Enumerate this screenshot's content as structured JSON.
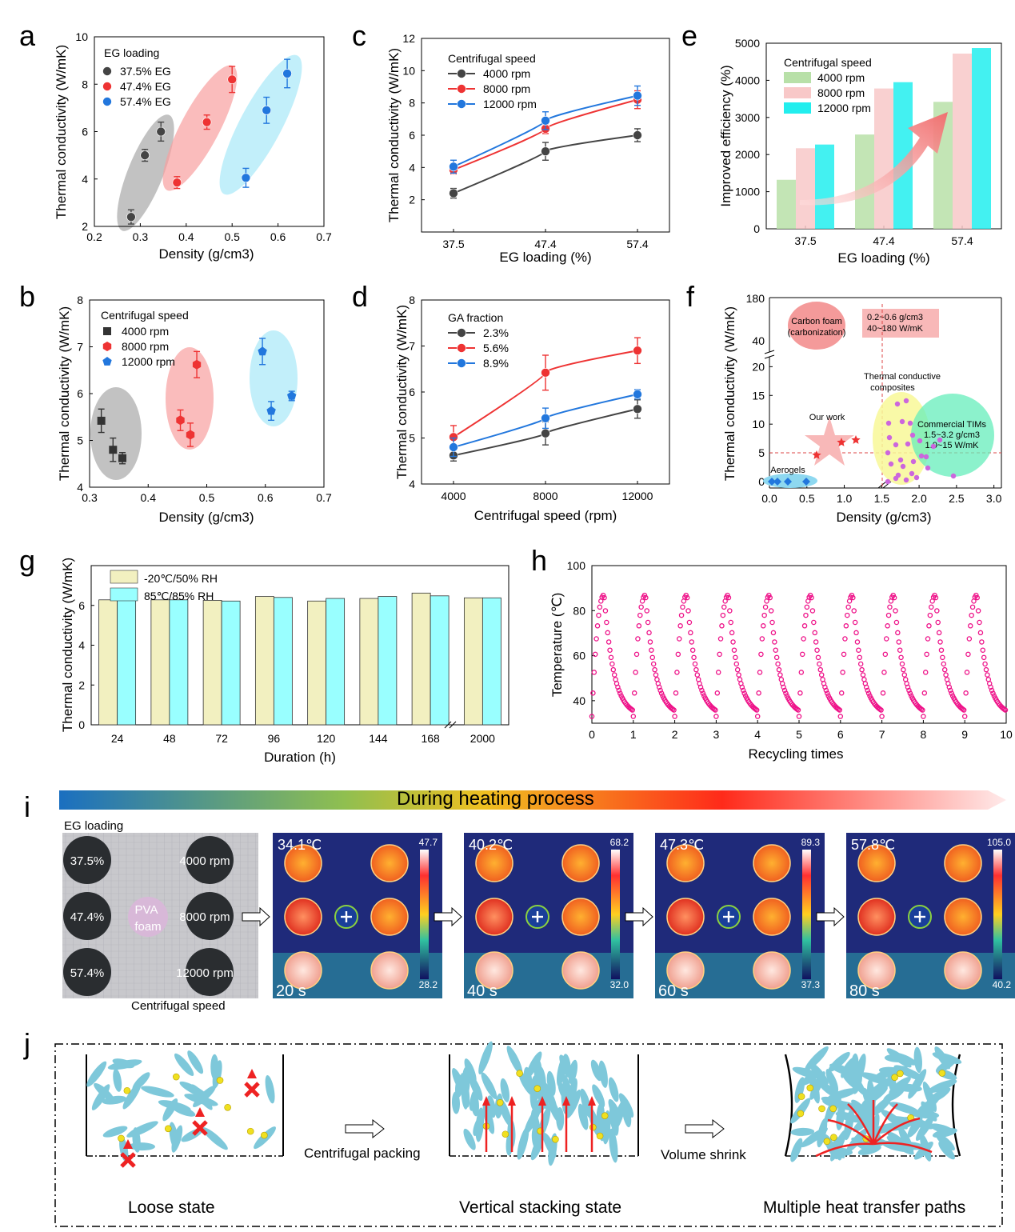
{
  "panel_labels": [
    "a",
    "b",
    "c",
    "d",
    "e",
    "f",
    "g",
    "h",
    "i",
    "j"
  ],
  "chart_data": [
    {
      "id": "a",
      "type": "scatter",
      "xlabel": "Density (g/cm3)",
      "ylabel": "Thermal conductivity (W/mK)",
      "xlim": [
        0.2,
        0.7
      ],
      "ylim": [
        2,
        10
      ],
      "xticks": [
        "0.2",
        "0.3",
        "0.4",
        "0.5",
        "0.6",
        "0.7"
      ],
      "yticks": [
        "2",
        "4",
        "6",
        "8",
        "10"
      ],
      "legend_title": "EG loading",
      "series": [
        {
          "name": "37.5% EG",
          "color": "#444444",
          "points": [
            [
              0.28,
              2.4,
              0.3
            ],
            [
              0.31,
              5.0,
              0.25
            ],
            [
              0.345,
              6.0,
              0.4
            ]
          ]
        },
        {
          "name": "47.4% EG",
          "color": "#ee3333",
          "points": [
            [
              0.38,
              3.85,
              0.25
            ],
            [
              0.445,
              6.4,
              0.3
            ],
            [
              0.5,
              8.2,
              0.55
            ]
          ]
        },
        {
          "name": "57.4% EG",
          "color": "#2277dd",
          "points": [
            [
              0.53,
              4.05,
              0.4
            ],
            [
              0.575,
              6.9,
              0.55
            ],
            [
              0.62,
              8.45,
              0.6
            ]
          ]
        }
      ]
    },
    {
      "id": "b",
      "type": "scatter",
      "xlabel": "Density (g/cm3)",
      "ylabel": "Thermal conductivity (W/mK)",
      "xlim": [
        0.3,
        0.7
      ],
      "ylim": [
        4,
        8
      ],
      "xticks": [
        "0.3",
        "0.4",
        "0.5",
        "0.6",
        "0.7"
      ],
      "yticks": [
        "4",
        "5",
        "6",
        "7",
        "8"
      ],
      "legend_title": "Centrifugal speed",
      "series": [
        {
          "name": "4000 rpm",
          "color": "#333333",
          "marker": "square",
          "points": [
            [
              0.32,
              5.42,
              0.25
            ],
            [
              0.34,
              4.8,
              0.25
            ],
            [
              0.356,
              4.62,
              0.12
            ]
          ]
        },
        {
          "name": "8000 rpm",
          "color": "#ee3333",
          "marker": "hex",
          "points": [
            [
              0.455,
              5.43,
              0.22
            ],
            [
              0.472,
              5.12,
              0.25
            ],
            [
              0.483,
              6.62,
              0.28
            ]
          ]
        },
        {
          "name": "12000 rpm",
          "color": "#2277dd",
          "marker": "pent",
          "points": [
            [
              0.595,
              6.9,
              0.28
            ],
            [
              0.61,
              5.63,
              0.2
            ],
            [
              0.645,
              5.95,
              0.1
            ]
          ]
        }
      ]
    },
    {
      "id": "c",
      "type": "line",
      "xlabel": "EG loading (%)",
      "ylabel": "Thermal conductivity (W/mK)",
      "ylim": [
        0,
        12
      ],
      "categories": [
        "37.5",
        "47.4",
        "57.4"
      ],
      "yticks": [
        "2",
        "4",
        "6",
        "8",
        "10",
        "12"
      ],
      "legend_title": "Centrifugal speed",
      "series": [
        {
          "name": "4000 rpm",
          "color": "#444444",
          "values": [
            2.4,
            5.0,
            6.0
          ],
          "err": [
            0.3,
            0.55,
            0.4
          ]
        },
        {
          "name": "8000 rpm",
          "color": "#ee3333",
          "values": [
            3.85,
            6.4,
            8.2
          ],
          "err": [
            0.25,
            0.3,
            0.55
          ]
        },
        {
          "name": "12000 rpm",
          "color": "#2277dd",
          "values": [
            4.05,
            6.9,
            8.45
          ],
          "err": [
            0.4,
            0.55,
            0.6
          ]
        }
      ]
    },
    {
      "id": "d",
      "type": "line",
      "xlabel": "Centrifugal speed (rpm)",
      "ylabel": "Thermal conductivity (W/mK)",
      "ylim": [
        4,
        8
      ],
      "categories": [
        "4000",
        "8000",
        "12000"
      ],
      "yticks": [
        "4",
        "5",
        "6",
        "7",
        "8"
      ],
      "legend_title": "GA fraction",
      "series": [
        {
          "name": "2.3%",
          "color": "#444444",
          "values": [
            4.62,
            5.1,
            5.63
          ],
          "err": [
            0.12,
            0.25,
            0.2
          ]
        },
        {
          "name": "5.6%",
          "color": "#ee3333",
          "values": [
            5.02,
            6.42,
            6.9
          ],
          "err": [
            0.25,
            0.38,
            0.28
          ]
        },
        {
          "name": "8.9%",
          "color": "#2277dd",
          "values": [
            4.8,
            5.43,
            5.95
          ],
          "err": [
            0.2,
            0.22,
            0.1
          ]
        }
      ]
    },
    {
      "id": "e",
      "type": "bar",
      "xlabel": "EG loading (%)",
      "ylabel": "Improved efficiency (%)",
      "ylim": [
        0,
        5000
      ],
      "categories": [
        "37.5",
        "47.4",
        "57.4"
      ],
      "yticks": [
        "0",
        "1000",
        "2000",
        "3000",
        "4000",
        "5000"
      ],
      "legend_title": "Centrifugal speed",
      "series": [
        {
          "name": "4000 rpm",
          "color": "#b8e0a8",
          "values": [
            1320,
            2540,
            3420
          ]
        },
        {
          "name": "8000 rpm",
          "color": "#f8c8c8",
          "values": [
            2170,
            3780,
            4720
          ]
        },
        {
          "name": "12000 rpm",
          "color": "#22eeee",
          "values": [
            2270,
            3950,
            4870
          ]
        }
      ]
    },
    {
      "id": "f",
      "type": "scatter",
      "xlabel": "Density (g/cm3)",
      "ylabel": "Thermal conductivity (W/mK)",
      "xticks": [
        "0.0",
        "0.5",
        "1.0",
        "1.5",
        "2.0",
        "2.5",
        "3.0"
      ],
      "yticks_low": [
        "0",
        "5",
        "10",
        "15",
        "20"
      ],
      "yticks_high": [
        "40",
        "180"
      ],
      "annotations": [
        "Carbon foam",
        "(carbonization)",
        "0.2~0.6 g/cm3",
        "40~180 W/mK",
        "Thermal conductive",
        "composites",
        "Our work",
        "Commercial TIMs",
        "1.5~3.2 g/cm3",
        "1.0~15 W/mK",
        "Aerogels"
      ]
    },
    {
      "id": "g",
      "type": "bar",
      "xlabel": "Duration (h)",
      "ylabel": "Thermal conductivity (W/mK)",
      "ylim": [
        0,
        8
      ],
      "categories": [
        "24",
        "48",
        "72",
        "96",
        "120",
        "144",
        "168",
        "2000"
      ],
      "yticks": [
        "0",
        "2",
        "4",
        "6"
      ],
      "series": [
        {
          "name": "-20℃/50% RH",
          "color": "#f2f0c0",
          "values": [
            6.28,
            6.28,
            6.25,
            6.45,
            6.22,
            6.35,
            6.62,
            6.38
          ]
        },
        {
          "name": "85℃/85% RH",
          "color": "#99ffff",
          "values": [
            6.5,
            6.28,
            6.22,
            6.4,
            6.35,
            6.45,
            6.48,
            6.38
          ]
        }
      ]
    },
    {
      "id": "h",
      "type": "line",
      "xlabel": "Recycling times",
      "ylabel": "Temperature (℃)",
      "xlim": [
        0,
        10
      ],
      "ylim": [
        30,
        100
      ],
      "xticks": [
        "0",
        "1",
        "2",
        "3",
        "4",
        "5",
        "6",
        "7",
        "8",
        "9",
        "10"
      ],
      "yticks": [
        "40",
        "60",
        "80",
        "100"
      ],
      "cycles": 10,
      "peak": 87,
      "min": 33,
      "color": "#ee1188"
    }
  ],
  "panel_i": {
    "gradient_label": "During heating process",
    "photo": {
      "title": "EG loading",
      "rows": [
        "37.5%",
        "47.4%",
        "57.4%"
      ],
      "speeds": [
        "4000 rpm",
        "8000 rpm",
        "12000 rpm"
      ],
      "center": "PVA foam",
      "bottom": "Centrifugal speed"
    },
    "frames": [
      {
        "temp": "34.1℃",
        "max": "47.7",
        "min": "28.2",
        "time": "20 s"
      },
      {
        "temp": "40.2℃",
        "max": "68.2",
        "min": "32.0",
        "time": "40 s"
      },
      {
        "temp": "47.3℃",
        "max": "89.3",
        "min": "37.3",
        "time": "60 s"
      },
      {
        "temp": "57.8℃",
        "max": "105.0",
        "min": "40.2",
        "time": "80 s"
      }
    ]
  },
  "panel_j": {
    "arrow1": "Centrifugal packing",
    "arrow2": "Volume shrink",
    "states": [
      "Loose state",
      "Vertical stacking state",
      "Multiple heat transfer paths"
    ]
  }
}
